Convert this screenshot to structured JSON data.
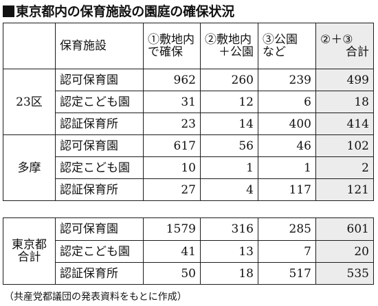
{
  "title": "東京都内の保育施設の園庭の確保状況",
  "columns": {
    "facility": "保育施設",
    "c1_line1": "①敷地内",
    "c1_line2": "で確保",
    "c2_line1": "②敷地内",
    "c2_line2": "＋公園",
    "c3_line1": "③公園",
    "c3_line2": "など",
    "c4_line1": "②＋③",
    "c4_line2": "合計"
  },
  "groups": [
    {
      "area": "23区",
      "rows": [
        {
          "facility": "認可保育園",
          "c1": "962",
          "c2": "260",
          "c3": "239",
          "c4": "499"
        },
        {
          "facility": "認定こども園",
          "c1": "31",
          "c2": "12",
          "c3": "6",
          "c4": "18"
        },
        {
          "facility": "認証保育所",
          "c1": "23",
          "c2": "14",
          "c3": "400",
          "c4": "414"
        }
      ]
    },
    {
      "area": "多摩",
      "rows": [
        {
          "facility": "認可保育園",
          "c1": "617",
          "c2": "56",
          "c3": "46",
          "c4": "102"
        },
        {
          "facility": "認定こども園",
          "c1": "10",
          "c2": "1",
          "c3": "1",
          "c4": "2"
        },
        {
          "facility": "認証保育所",
          "c1": "27",
          "c2": "4",
          "c3": "117",
          "c4": "121"
        }
      ]
    },
    {
      "area_line1": "東京都",
      "area_line2": "合計",
      "rows": [
        {
          "facility": "認可保育園",
          "c1": "1579",
          "c2": "316",
          "c3": "285",
          "c4": "601"
        },
        {
          "facility": "認定こども園",
          "c1": "41",
          "c2": "13",
          "c3": "7",
          "c4": "20"
        },
        {
          "facility": "認証保育所",
          "c1": "50",
          "c2": "18",
          "c3": "517",
          "c4": "535"
        }
      ]
    }
  ],
  "source": "（共産党都議団の発表資料をもとに作成）",
  "colors": {
    "total_column_shade": "#ececec",
    "text": "#111111"
  }
}
